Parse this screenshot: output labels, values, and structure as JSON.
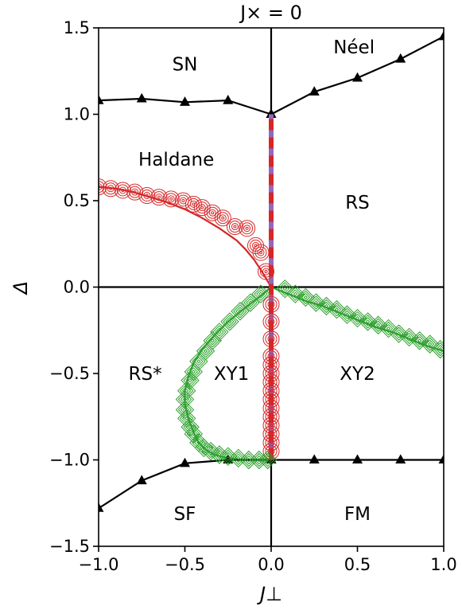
{
  "chart_data": {
    "type": "scatter",
    "title": "J× = 0",
    "xlabel": "J⊥",
    "ylabel": "Δ",
    "xlim": [
      -1.0,
      1.0
    ],
    "ylim": [
      -1.5,
      1.5
    ],
    "xticks": [
      "−1.0",
      "−0.5",
      "0.0",
      "0.5",
      "1.0"
    ],
    "yticks": [
      "−1.5",
      "−1.0",
      "−0.5",
      "0.0",
      "0.5",
      "1.0",
      "1.5"
    ],
    "xtick_values": [
      -1.0,
      -0.5,
      0.0,
      0.5,
      1.0
    ],
    "ytick_values": [
      -1.5,
      -1.0,
      -0.5,
      0.0,
      0.5,
      1.0,
      1.5
    ],
    "phase_labels": [
      {
        "text": "SN",
        "x": -0.5,
        "y": 1.29
      },
      {
        "text": "Néel",
        "x": 0.48,
        "y": 1.39
      },
      {
        "text": "Haldane",
        "x": -0.55,
        "y": 0.74
      },
      {
        "text": "RS",
        "x": 0.5,
        "y": 0.49
      },
      {
        "text": "RS*",
        "x": -0.73,
        "y": -0.5
      },
      {
        "text": "XY1",
        "x": -0.23,
        "y": -0.5
      },
      {
        "text": "XY2",
        "x": 0.5,
        "y": -0.5
      },
      {
        "text": "SF",
        "x": -0.5,
        "y": -1.31
      },
      {
        "text": "FM",
        "x": 0.5,
        "y": -1.31
      }
    ],
    "colors": {
      "black": "#000000",
      "red": "#d62728",
      "green": "#2ca02c",
      "purple": "#9467bd"
    },
    "series": [
      {
        "kind": "line-markers",
        "marker": "triangle",
        "color": "#000000",
        "x": [
          -1.0,
          -0.75,
          -0.5,
          -0.25,
          0.0
        ],
        "y": [
          1.08,
          1.09,
          1.07,
          1.08,
          1.0
        ]
      },
      {
        "kind": "line-markers",
        "marker": "triangle",
        "color": "#000000",
        "x": [
          0.0,
          0.25,
          0.5,
          0.75,
          1.0
        ],
        "y": [
          1.0,
          1.13,
          1.21,
          1.32,
          1.45
        ]
      },
      {
        "kind": "line-markers",
        "marker": "triangle",
        "color": "#000000",
        "x": [
          -1.0,
          -0.75,
          -0.5,
          -0.25,
          0.0
        ],
        "y": [
          -1.28,
          -1.12,
          -1.02,
          -1.0,
          -1.0
        ]
      },
      {
        "kind": "line-markers",
        "marker": "triangle",
        "color": "#000000",
        "x": [
          0.0,
          0.25,
          0.5,
          0.75,
          1.0
        ],
        "y": [
          -1.0,
          -1.0,
          -1.0,
          -1.0,
          -1.0
        ]
      },
      {
        "kind": "line",
        "color": "#000000",
        "x": [
          0.0,
          0.0
        ],
        "y": [
          1.0,
          1.5
        ]
      },
      {
        "kind": "line",
        "color": "#000000",
        "x": [
          0.0,
          0.0
        ],
        "y": [
          -1.0,
          -1.5
        ]
      },
      {
        "kind": "line",
        "color": "#000000",
        "x": [
          -1.0,
          1.0
        ],
        "y": [
          0.0,
          0.0
        ]
      },
      {
        "kind": "thick-line",
        "color": "#9467bd",
        "x": [
          0.0,
          0.0
        ],
        "y": [
          -1.0,
          1.0
        ]
      },
      {
        "kind": "dashed-line",
        "color": "#d62728",
        "x": [
          0.0,
          0.0
        ],
        "y": [
          -1.0,
          1.0
        ]
      },
      {
        "kind": "line",
        "color": "#d62728",
        "x": [
          -1.0,
          -0.9,
          -0.8,
          -0.7,
          -0.6,
          -0.5,
          -0.4,
          -0.3,
          -0.2,
          -0.15,
          -0.1,
          -0.06,
          -0.03,
          0.0
        ],
        "y": [
          0.58,
          0.57,
          0.55,
          0.52,
          0.49,
          0.45,
          0.4,
          0.34,
          0.27,
          0.22,
          0.16,
          0.1,
          0.05,
          0.0
        ]
      },
      {
        "kind": "markers",
        "marker": "target-circle",
        "color": "#d62728",
        "x": [
          -1.0,
          -0.93,
          -0.86,
          -0.79,
          -0.72,
          -0.65,
          -0.58,
          -0.51,
          -0.45,
          -0.4,
          -0.34,
          -0.28,
          -0.21,
          -0.14,
          -0.09,
          -0.06,
          -0.03
        ],
        "y": [
          0.58,
          0.57,
          0.56,
          0.55,
          0.53,
          0.52,
          0.51,
          0.5,
          0.48,
          0.46,
          0.43,
          0.4,
          0.35,
          0.34,
          0.24,
          0.2,
          0.09
        ]
      },
      {
        "kind": "markers",
        "marker": "target-circle",
        "color": "#d62728",
        "x": [
          0.0,
          0.0,
          0.0,
          0.0,
          0.0,
          0.0,
          0.0,
          0.0,
          0.0,
          0.0,
          0.0,
          0.0,
          0.0,
          0.0,
          0.0
        ],
        "y": [
          -0.1,
          -0.2,
          -0.3,
          -0.4,
          -0.45,
          -0.5,
          -0.55,
          -0.6,
          -0.65,
          -0.7,
          -0.75,
          -0.8,
          -0.85,
          -0.9,
          -0.95
        ]
      },
      {
        "kind": "line",
        "color": "#2ca02c",
        "x": [
          0.0,
          -0.06,
          -0.15,
          -0.25,
          -0.33,
          -0.4,
          -0.45,
          -0.48,
          -0.5,
          -0.5,
          -0.48,
          -0.45,
          -0.42,
          -0.38,
          -0.33,
          -0.25,
          -0.15,
          -0.05,
          0.0
        ],
        "y": [
          0.0,
          -0.05,
          -0.12,
          -0.2,
          -0.28,
          -0.36,
          -0.44,
          -0.52,
          -0.6,
          -0.68,
          -0.76,
          -0.84,
          -0.9,
          -0.94,
          -0.97,
          -0.99,
          -1.0,
          -1.0,
          -1.0
        ]
      },
      {
        "kind": "line",
        "color": "#2ca02c",
        "x": [
          0.0,
          0.1,
          0.2,
          0.3,
          0.4,
          0.5,
          0.6,
          0.7,
          0.8,
          0.9,
          1.0
        ],
        "y": [
          0.0,
          -0.04,
          -0.08,
          -0.11,
          -0.15,
          -0.19,
          -0.23,
          -0.26,
          -0.3,
          -0.34,
          -0.37
        ]
      },
      {
        "kind": "markers",
        "marker": "target-diamond",
        "color": "#2ca02c",
        "x": [
          -0.06,
          -0.12,
          -0.18,
          -0.24,
          -0.3,
          -0.34,
          -0.38,
          -0.42,
          -0.45,
          -0.47,
          -0.49,
          -0.5,
          -0.5,
          -0.49,
          -0.47,
          -0.45,
          -0.42,
          -0.39,
          -0.35,
          -0.3,
          -0.25,
          -0.19,
          -0.13,
          -0.07,
          -0.02
        ],
        "y": [
          -0.04,
          -0.09,
          -0.14,
          -0.2,
          -0.26,
          -0.31,
          -0.37,
          -0.43,
          -0.49,
          -0.54,
          -0.6,
          -0.65,
          -0.71,
          -0.76,
          -0.81,
          -0.85,
          -0.9,
          -0.93,
          -0.95,
          -0.97,
          -0.98,
          -0.99,
          -1.0,
          -1.0,
          -1.0
        ]
      },
      {
        "kind": "markers",
        "marker": "target-diamond",
        "color": "#2ca02c",
        "x": [
          0.08,
          0.14,
          0.2,
          0.26,
          0.32,
          0.38,
          0.44,
          0.5,
          0.56,
          0.62,
          0.68,
          0.74,
          0.8,
          0.86,
          0.92,
          0.98
        ],
        "y": [
          -0.01,
          -0.04,
          -0.06,
          -0.09,
          -0.11,
          -0.13,
          -0.16,
          -0.18,
          -0.2,
          -0.22,
          -0.24,
          -0.27,
          -0.29,
          -0.31,
          -0.33,
          -0.36
        ]
      }
    ]
  }
}
